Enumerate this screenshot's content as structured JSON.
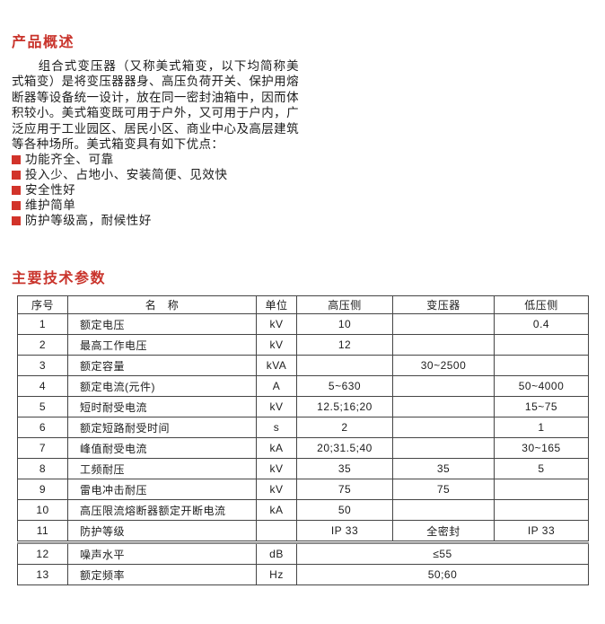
{
  "colors": {
    "accent_red": "#c9342c",
    "bullet_red": "#d2332a",
    "table_border": "#454545"
  },
  "overview": {
    "title": "产品概述",
    "paragraph": "组合式变压器（又称美式箱变，以下均简称美式箱变）是将变压器器身、高压负荷开关、保护用熔断器等设备统一设计，放在同一密封油箱中，因而体积较小。美式箱变既可用于户外，又可用于户内，广泛应用于工业园区、居民小区、商业中心及高层建筑等各种场所。美式箱变具有如下优点：",
    "bullets": [
      "功能齐全、可靠",
      "投入少、占地小、安装简便、见效快",
      "安全性好",
      "维护简单",
      "防护等级高，耐候性好"
    ]
  },
  "parameters": {
    "title": "主要技术参数",
    "table": {
      "headers": {
        "no": "序号",
        "name": "名　称",
        "unit": "单位",
        "hv": "高压侧",
        "tx": "变压器",
        "lv": "低压侧"
      },
      "rows": [
        {
          "no": "1",
          "name": "额定电压",
          "unit": "kV",
          "hv": "10",
          "tx": "",
          "lv": "0.4"
        },
        {
          "no": "2",
          "name": "最高工作电压",
          "unit": "kV",
          "hv": "12",
          "tx": "",
          "lv": ""
        },
        {
          "no": "3",
          "name": "额定容量",
          "unit": "kVA",
          "hv": "",
          "tx": "30~2500",
          "lv": ""
        },
        {
          "no": "4",
          "name": "额定电流(元件)",
          "unit": "A",
          "hv": "5~630",
          "tx": "",
          "lv": "50~4000"
        },
        {
          "no": "5",
          "name": "短时耐受电流",
          "unit": "kV",
          "hv": "12.5;16;20",
          "tx": "",
          "lv": "15~75"
        },
        {
          "no": "6",
          "name": "额定短路耐受时间",
          "unit": "s",
          "hv": "2",
          "tx": "",
          "lv": "1"
        },
        {
          "no": "7",
          "name": "峰值耐受电流",
          "unit": "kA",
          "hv": "20;31.5;40",
          "tx": "",
          "lv": "30~165"
        },
        {
          "no": "8",
          "name": "工频耐压",
          "unit": "kV",
          "hv": "35",
          "tx": "35",
          "lv": "5"
        },
        {
          "no": "9",
          "name": "雷电冲击耐压",
          "unit": "kV",
          "hv": "75",
          "tx": "75",
          "lv": ""
        },
        {
          "no": "10",
          "name": "高压限流熔断器额定开断电流",
          "unit": "kA",
          "hv": "50",
          "tx": "",
          "lv": ""
        },
        {
          "no": "11",
          "name": "防护等级",
          "unit": "",
          "hv": "IP 33",
          "tx": "全密封",
          "lv": "IP 33"
        },
        {
          "no": "12",
          "name": "噪声水平",
          "unit": "dB",
          "merged": "≤55"
        },
        {
          "no": "13",
          "name": "额定频率",
          "unit": "Hz",
          "merged": "50;60"
        }
      ]
    }
  }
}
